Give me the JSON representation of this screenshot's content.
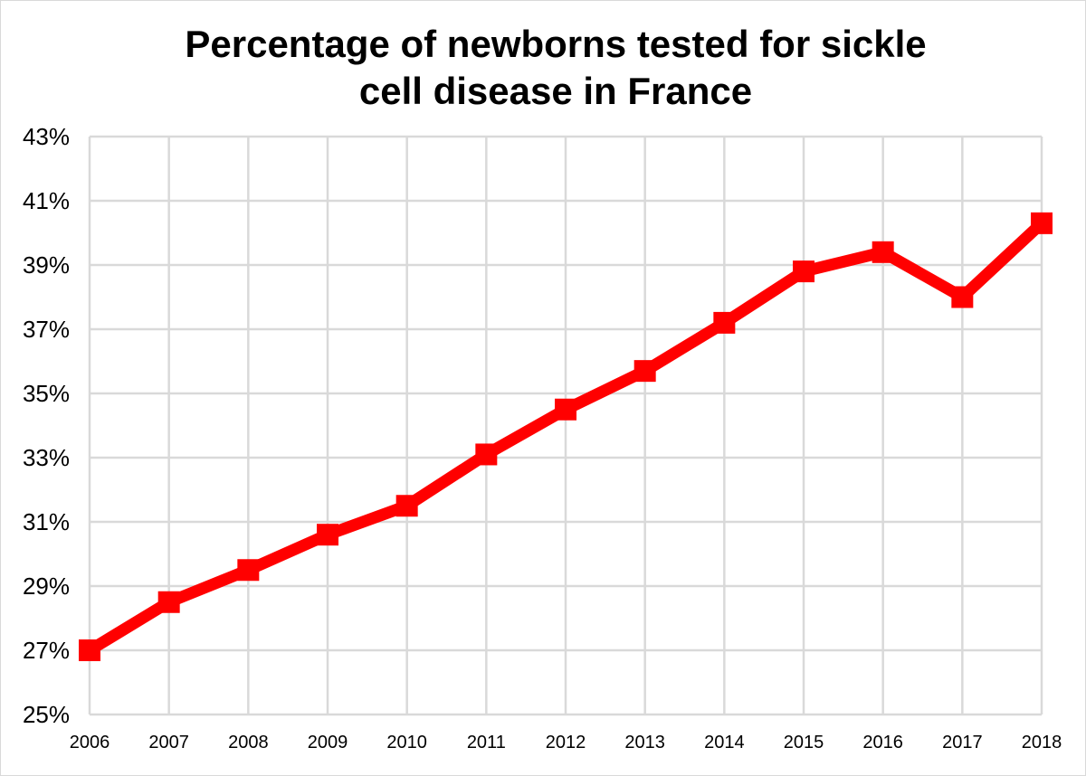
{
  "chart_data": {
    "type": "line",
    "title_lines": [
      "Percentage of newborns tested for sickle",
      "cell disease in France"
    ],
    "xlabel": "",
    "ylabel": "",
    "categories": [
      "2006",
      "2007",
      "2008",
      "2009",
      "2010",
      "2011",
      "2012",
      "2013",
      "2014",
      "2015",
      "2016",
      "2017",
      "2018"
    ],
    "series": [
      {
        "values": [
          27.0,
          28.5,
          29.5,
          30.6,
          31.5,
          33.1,
          34.5,
          35.7,
          37.2,
          38.8,
          39.4,
          38.0,
          40.3
        ],
        "color": "#ff0000",
        "marker": "square"
      }
    ],
    "ylim": [
      25,
      43
    ],
    "yticks": [
      25,
      27,
      29,
      31,
      33,
      35,
      37,
      39,
      41,
      43
    ],
    "ytick_labels": [
      "25%",
      "27%",
      "29%",
      "31%",
      "33%",
      "35%",
      "37%",
      "39%",
      "41%",
      "43%"
    ],
    "grid": true,
    "grid_color": "#d9d9d9",
    "legend": "none"
  }
}
